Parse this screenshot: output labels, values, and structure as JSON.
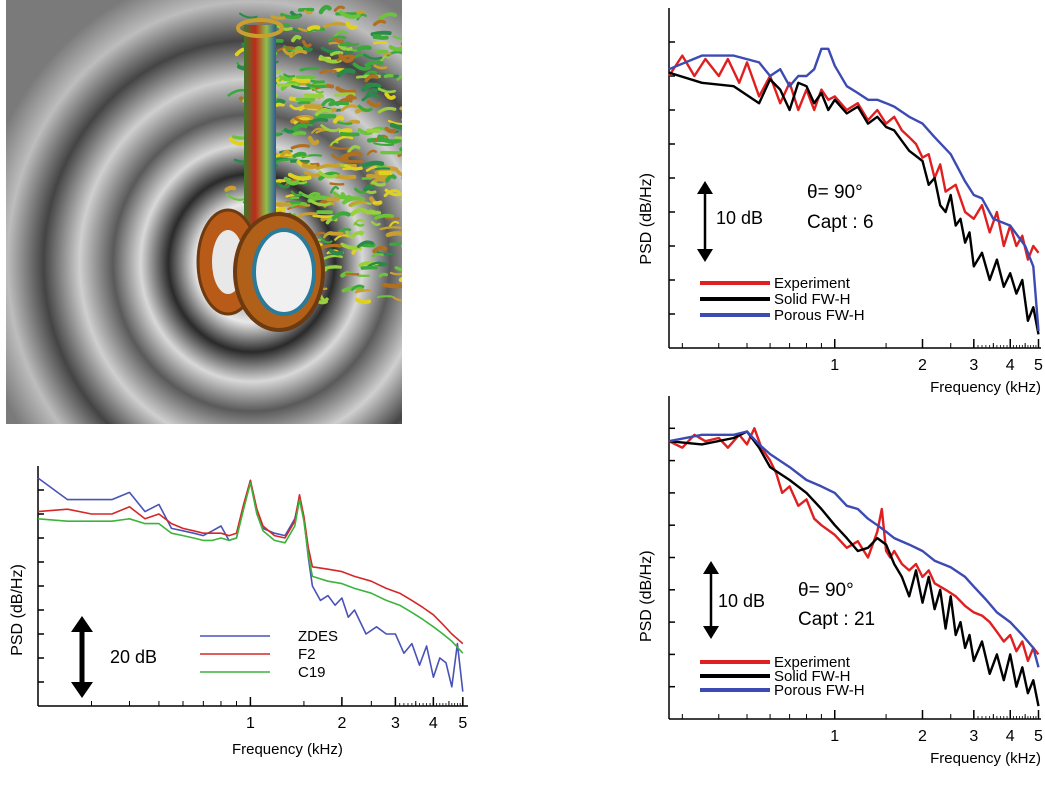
{
  "chart_data": [
    {
      "type": "line",
      "id": "chart-a",
      "xlabel": "Frequency (kHz)",
      "ylabel": "PSD (dB/Hz)",
      "x_scale": "log",
      "xlim": [
        0.2,
        5.2
      ],
      "ylim": [
        0,
        100
      ],
      "xticks": [
        1,
        2,
        3,
        4,
        5
      ],
      "xtick_labels": [
        "1",
        "2",
        "3",
        "4",
        "5"
      ],
      "y_ticks_unlabeled": true,
      "annotation": "20 dB",
      "annotation_span_db": 20,
      "legend": "center-right",
      "series": [
        {
          "name": "ZDES",
          "color": "#4a52b8",
          "x": [
            0.2,
            0.25,
            0.3,
            0.35,
            0.4,
            0.45,
            0.5,
            0.55,
            0.6,
            0.65,
            0.7,
            0.75,
            0.8,
            0.85,
            0.9,
            0.95,
            1.0,
            1.05,
            1.1,
            1.2,
            1.3,
            1.4,
            1.45,
            1.5,
            1.55,
            1.6,
            1.7,
            1.8,
            1.9,
            2.0,
            2.1,
            2.2,
            2.4,
            2.6,
            2.8,
            3.0,
            3.2,
            3.4,
            3.6,
            3.8,
            4.0,
            4.2,
            4.4,
            4.6,
            4.8,
            5.0
          ],
          "y": [
            95,
            86,
            86,
            86,
            89,
            81,
            84,
            74,
            73,
            72,
            71,
            73,
            75,
            69,
            70,
            83,
            94,
            80,
            74,
            72,
            71,
            78,
            87,
            78,
            62,
            50,
            44,
            46,
            42,
            45,
            37,
            40,
            30,
            33,
            30,
            30,
            22,
            26,
            17,
            25,
            12,
            20,
            18,
            8,
            26,
            6
          ]
        },
        {
          "name": "F2",
          "color": "#d42828",
          "x": [
            0.2,
            0.25,
            0.3,
            0.35,
            0.4,
            0.45,
            0.5,
            0.55,
            0.6,
            0.65,
            0.7,
            0.75,
            0.8,
            0.85,
            0.9,
            0.95,
            1.0,
            1.05,
            1.1,
            1.2,
            1.3,
            1.4,
            1.45,
            1.5,
            1.55,
            1.6,
            1.8,
            2.0,
            2.2,
            2.5,
            2.8,
            3.1,
            3.4,
            3.7,
            4.0,
            4.3,
            4.6,
            5.0
          ],
          "y": [
            81,
            82,
            80,
            80,
            83,
            78,
            80,
            76,
            74,
            73,
            72,
            72,
            72,
            71,
            72,
            84,
            94,
            82,
            75,
            71,
            70,
            77,
            88,
            79,
            66,
            58,
            57,
            56,
            54,
            52,
            49,
            47,
            44,
            41,
            38,
            34,
            30,
            26
          ]
        },
        {
          "name": "C19",
          "color": "#3cb43c",
          "x": [
            0.2,
            0.25,
            0.3,
            0.35,
            0.4,
            0.45,
            0.5,
            0.55,
            0.6,
            0.65,
            0.7,
            0.75,
            0.8,
            0.85,
            0.9,
            0.95,
            1.0,
            1.05,
            1.1,
            1.2,
            1.3,
            1.4,
            1.45,
            1.5,
            1.55,
            1.6,
            1.8,
            2.0,
            2.2,
            2.5,
            2.8,
            3.1,
            3.4,
            3.7,
            4.0,
            4.3,
            4.6,
            5.0
          ],
          "y": [
            78,
            77,
            77,
            77,
            78,
            76,
            76,
            72,
            71,
            70,
            69,
            69,
            70,
            69,
            70,
            82,
            93,
            80,
            73,
            69,
            68,
            75,
            86,
            77,
            63,
            54,
            52,
            51,
            49,
            47,
            44,
            42,
            39,
            36,
            33,
            30,
            27,
            22
          ]
        }
      ]
    },
    {
      "type": "line",
      "id": "chart-b",
      "xlabel": "Frequency (kHz)",
      "ylabel": "PSD (dB/Hz)",
      "x_scale": "log",
      "xlim": [
        0.27,
        5.1
      ],
      "ylim": [
        0,
        100
      ],
      "xticks": [
        1,
        2,
        3,
        4,
        5
      ],
      "xtick_labels": [
        "1",
        "2",
        "3",
        "4",
        "5"
      ],
      "y_ticks_unlabeled": true,
      "annotation": "10 dB",
      "annotation_span_db": 10,
      "text_lines": [
        "θ= 90°",
        "Capt : 6"
      ],
      "legend": "bottom-left",
      "series": [
        {
          "name": "Experiment",
          "color": "#e02020",
          "x": [
            0.27,
            0.3,
            0.33,
            0.36,
            0.4,
            0.43,
            0.47,
            0.5,
            0.55,
            0.6,
            0.65,
            0.7,
            0.75,
            0.8,
            0.85,
            0.9,
            0.95,
            1.0,
            1.1,
            1.2,
            1.3,
            1.4,
            1.5,
            1.6,
            1.7,
            1.8,
            1.9,
            2.0,
            2.1,
            2.2,
            2.3,
            2.4,
            2.6,
            2.8,
            3.0,
            3.2,
            3.4,
            3.6,
            3.8,
            4.0,
            4.2,
            4.4,
            4.6,
            4.8,
            5.0
          ],
          "y": [
            80,
            86,
            80,
            85,
            80,
            85,
            78,
            84,
            74,
            80,
            72,
            78,
            70,
            76,
            70,
            76,
            73,
            74,
            70,
            72,
            67,
            70,
            66,
            68,
            64,
            62,
            60,
            56,
            57,
            50,
            54,
            46,
            48,
            40,
            38,
            42,
            34,
            40,
            30,
            36,
            30,
            33,
            26,
            30,
            28
          ]
        },
        {
          "name": "Solid FW-H",
          "color": "#000000",
          "x": [
            0.27,
            0.35,
            0.45,
            0.55,
            0.6,
            0.65,
            0.7,
            0.75,
            0.8,
            0.85,
            0.9,
            0.95,
            1.0,
            1.1,
            1.2,
            1.3,
            1.4,
            1.5,
            1.6,
            1.8,
            2.0,
            2.1,
            2.2,
            2.3,
            2.4,
            2.5,
            2.6,
            2.7,
            2.8,
            2.9,
            3.0,
            3.2,
            3.4,
            3.6,
            3.8,
            4.0,
            4.2,
            4.4,
            4.6,
            4.8,
            5.0
          ],
          "y": [
            81,
            78,
            77,
            72,
            79,
            76,
            70,
            78,
            77,
            72,
            75,
            70,
            73,
            69,
            71,
            66,
            68,
            65,
            64,
            58,
            55,
            48,
            50,
            42,
            40,
            45,
            36,
            38,
            31,
            34,
            24,
            28,
            20,
            26,
            18,
            22,
            16,
            20,
            8,
            12,
            4
          ]
        },
        {
          "name": "Porous FW-H",
          "color": "#3c4ab4",
          "x": [
            0.27,
            0.35,
            0.45,
            0.55,
            0.6,
            0.65,
            0.7,
            0.75,
            0.8,
            0.85,
            0.9,
            0.95,
            1.0,
            1.1,
            1.2,
            1.3,
            1.4,
            1.5,
            1.6,
            1.8,
            2.0,
            2.2,
            2.5,
            2.8,
            3.0,
            3.2,
            3.5,
            4.0,
            4.5,
            4.8,
            5.0
          ],
          "y": [
            82,
            86,
            86,
            84,
            80,
            82,
            77,
            80,
            80,
            82,
            88,
            88,
            83,
            77,
            75,
            73,
            73,
            72,
            71,
            68,
            66,
            62,
            57,
            49,
            45,
            44,
            38,
            36,
            30,
            24,
            5
          ]
        }
      ]
    },
    {
      "type": "line",
      "id": "chart-c",
      "xlabel": "Frequency (kHz)",
      "ylabel": "PSD (dB/Hz)",
      "x_scale": "log",
      "xlim": [
        0.27,
        5.1
      ],
      "ylim": [
        0,
        100
      ],
      "xticks": [
        1,
        2,
        3,
        4,
        5
      ],
      "xtick_labels": [
        "1",
        "2",
        "3",
        "4",
        "5"
      ],
      "y_ticks_unlabeled": true,
      "annotation": "10 dB",
      "annotation_span_db": 10,
      "text_lines": [
        "θ= 90°",
        "Capt : 21"
      ],
      "legend": "bottom-left",
      "series": [
        {
          "name": "Experiment",
          "color": "#e02020",
          "x": [
            0.27,
            0.3,
            0.33,
            0.36,
            0.4,
            0.43,
            0.47,
            0.5,
            0.53,
            0.56,
            0.6,
            0.63,
            0.66,
            0.7,
            0.75,
            0.8,
            0.85,
            0.9,
            1.0,
            1.1,
            1.2,
            1.3,
            1.4,
            1.45,
            1.5,
            1.55,
            1.6,
            1.7,
            1.8,
            1.9,
            2.0,
            2.1,
            2.2,
            2.4,
            2.6,
            2.8,
            3.0,
            3.2,
            3.4,
            3.6,
            3.8,
            4.0,
            4.2,
            4.4,
            4.6,
            4.8,
            5.0
          ],
          "y": [
            86,
            84,
            88,
            86,
            87,
            84,
            88,
            85,
            90,
            84,
            80,
            76,
            70,
            72,
            66,
            68,
            62,
            60,
            57,
            53,
            55,
            50,
            58,
            65,
            52,
            50,
            52,
            48,
            46,
            48,
            44,
            46,
            42,
            40,
            38,
            35,
            33,
            32,
            30,
            27,
            24,
            26,
            21,
            24,
            18,
            22,
            20
          ]
        },
        {
          "name": "Solid FW-H",
          "color": "#000000",
          "x": [
            0.27,
            0.35,
            0.45,
            0.5,
            0.55,
            0.6,
            0.7,
            0.8,
            0.9,
            1.0,
            1.1,
            1.2,
            1.3,
            1.4,
            1.5,
            1.6,
            1.7,
            1.8,
            1.9,
            2.0,
            2.1,
            2.2,
            2.3,
            2.4,
            2.5,
            2.6,
            2.7,
            2.8,
            2.9,
            3.0,
            3.2,
            3.4,
            3.6,
            3.8,
            4.0,
            4.2,
            4.4,
            4.6,
            4.8,
            5.0
          ],
          "y": [
            86,
            85,
            87,
            89,
            84,
            78,
            74,
            70,
            65,
            60,
            56,
            52,
            53,
            56,
            54,
            48,
            44,
            38,
            46,
            36,
            44,
            34,
            40,
            28,
            38,
            26,
            30,
            22,
            26,
            18,
            24,
            14,
            20,
            12,
            20,
            10,
            16,
            8,
            12,
            4
          ]
        },
        {
          "name": "Porous FW-H",
          "color": "#3c4ab4",
          "x": [
            0.27,
            0.35,
            0.45,
            0.5,
            0.55,
            0.6,
            0.7,
            0.8,
            0.9,
            1.0,
            1.1,
            1.2,
            1.3,
            1.4,
            1.5,
            1.6,
            1.8,
            2.0,
            2.2,
            2.5,
            2.8,
            3.0,
            3.3,
            3.6,
            4.0,
            4.4,
            4.8,
            5.0
          ],
          "y": [
            86,
            88,
            88,
            89,
            85,
            82,
            78,
            74,
            72,
            70,
            66,
            65,
            62,
            60,
            58,
            56,
            54,
            52,
            49,
            47,
            44,
            41,
            37,
            33,
            30,
            26,
            22,
            16
          ]
        }
      ]
    }
  ]
}
